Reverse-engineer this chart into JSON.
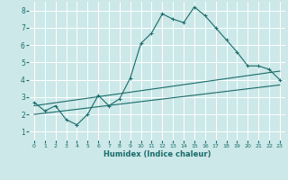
{
  "xlabel": "Humidex (Indice chaleur)",
  "xlim": [
    -0.5,
    23.5
  ],
  "ylim": [
    0.5,
    8.5
  ],
  "yticks": [
    1,
    2,
    3,
    4,
    5,
    6,
    7,
    8
  ],
  "xticks": [
    0,
    1,
    2,
    3,
    4,
    5,
    6,
    7,
    8,
    9,
    10,
    11,
    12,
    13,
    14,
    15,
    16,
    17,
    18,
    19,
    20,
    21,
    22,
    23
  ],
  "bg_color": "#cce8e8",
  "grid_color": "#ffffff",
  "line_color": "#1a6b6b",
  "line1_x": [
    0,
    1,
    2,
    3,
    4,
    5,
    6,
    7,
    8,
    9,
    10,
    11,
    12,
    13,
    14,
    15,
    16,
    17,
    18,
    19,
    20,
    21,
    22,
    23
  ],
  "line1_y": [
    2.7,
    2.2,
    2.5,
    1.7,
    1.4,
    2.0,
    3.1,
    2.5,
    2.9,
    4.1,
    6.1,
    6.7,
    7.8,
    7.5,
    7.3,
    8.2,
    7.7,
    7.0,
    6.3,
    5.6,
    4.8,
    4.8,
    4.6,
    4.0
  ],
  "line2_x": [
    0,
    23
  ],
  "line2_y": [
    2.0,
    3.7
  ],
  "line3_x": [
    0,
    23
  ],
  "line3_y": [
    2.5,
    4.5
  ],
  "marker_style": "+",
  "marker_size": 3,
  "line_width": 0.8,
  "xlabel_fontsize": 6.0,
  "tick_fontsize_x": 4.5,
  "tick_fontsize_y": 5.5
}
